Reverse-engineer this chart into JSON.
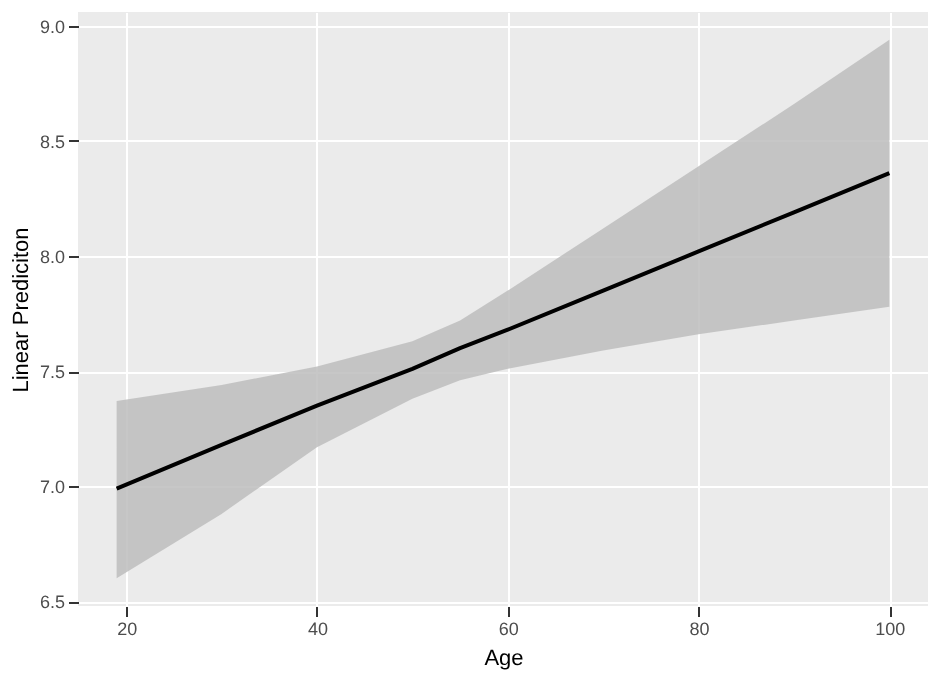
{
  "chart_data": {
    "type": "line",
    "xlabel": "Age",
    "ylabel": "Linear Prediciton",
    "x": [
      19,
      30,
      40,
      50,
      55,
      60,
      70,
      80,
      90,
      100
    ],
    "series": [
      {
        "color": "#000000",
        "values": [
          6.99,
          7.18,
          7.35,
          7.51,
          7.6,
          7.68,
          7.85,
          8.02,
          8.19,
          8.36
        ],
        "lower": [
          6.6,
          6.88,
          7.17,
          7.38,
          7.46,
          7.51,
          7.59,
          7.66,
          7.72,
          7.78
        ],
        "upper": [
          7.37,
          7.44,
          7.52,
          7.63,
          7.72,
          7.85,
          8.12,
          8.39,
          8.66,
          8.94
        ]
      }
    ],
    "xlim": [
      14.95,
      104.05
    ],
    "ylim": [
      6.48,
      9.06
    ],
    "xticks": [
      20,
      40,
      60,
      80,
      100
    ],
    "yticks": [
      6.5,
      {
        "value": 7,
        "label": "7.0"
      },
      7.5,
      {
        "value": 8,
        "label": "8.0"
      },
      8.5,
      {
        "value": 9,
        "label": "9.0"
      }
    ],
    "grid": true,
    "marker": "none",
    "line_style": "solid"
  }
}
